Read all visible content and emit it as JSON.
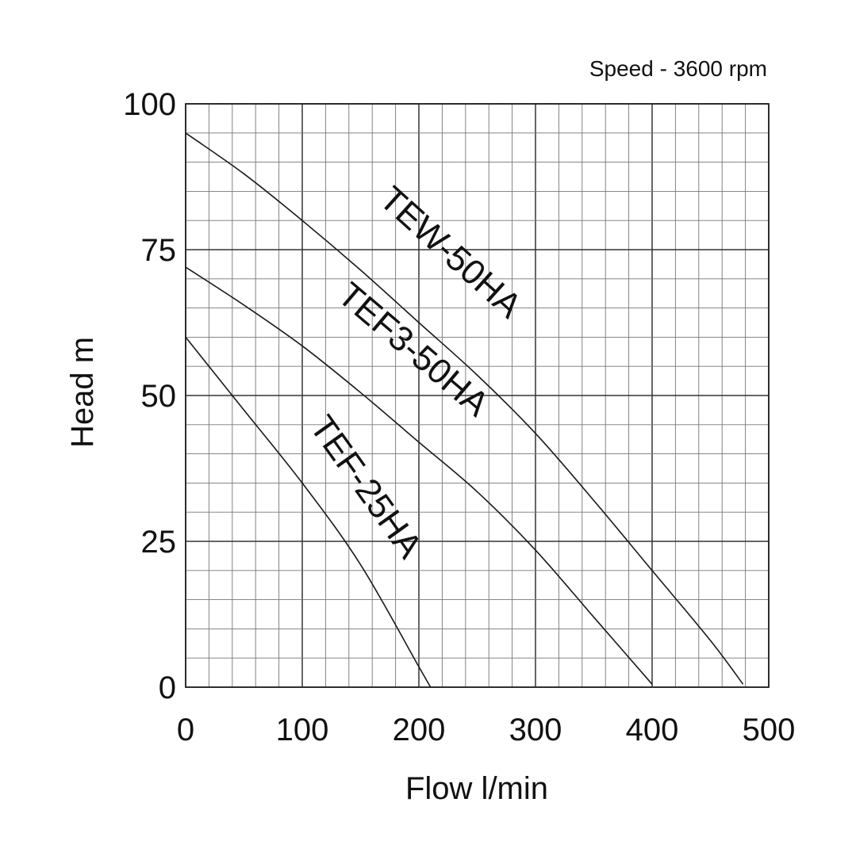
{
  "chart_data": {
    "type": "line",
    "title": "",
    "annotation": "Speed - 3600 rpm",
    "xlabel": "Flow l/min",
    "ylabel": "Head m",
    "xlim": [
      0,
      500
    ],
    "ylim": [
      0,
      100
    ],
    "x_ticks": [
      0,
      100,
      200,
      300,
      400,
      500
    ],
    "y_ticks": [
      0,
      25,
      50,
      75,
      100
    ],
    "x_tick_labels": [
      "0",
      "100",
      "200",
      "300",
      "400",
      "500"
    ],
    "y_tick_labels": [
      "0",
      "25",
      "50",
      "75",
      "100"
    ],
    "x_minor_step": 20,
    "y_minor_step": 5,
    "grid": true,
    "series": [
      {
        "name": "TEW-50HA",
        "x": [
          0,
          50,
          100,
          150,
          200,
          250,
          300,
          350,
          400,
          450,
          478
        ],
        "y": [
          95,
          88,
          80,
          71.5,
          62.5,
          53.5,
          43.5,
          32,
          20,
          8,
          0.5
        ]
      },
      {
        "name": "TEF3-50HA",
        "x": [
          0,
          50,
          100,
          150,
          200,
          250,
          300,
          350,
          400
        ],
        "y": [
          72,
          65.5,
          58.5,
          50.5,
          42,
          33.5,
          23.5,
          12,
          0.5
        ]
      },
      {
        "name": "TEF-25HA",
        "x": [
          0,
          50,
          100,
          150,
          200,
          210
        ],
        "y": [
          60,
          47.5,
          35,
          21,
          3.5,
          0
        ]
      }
    ]
  }
}
